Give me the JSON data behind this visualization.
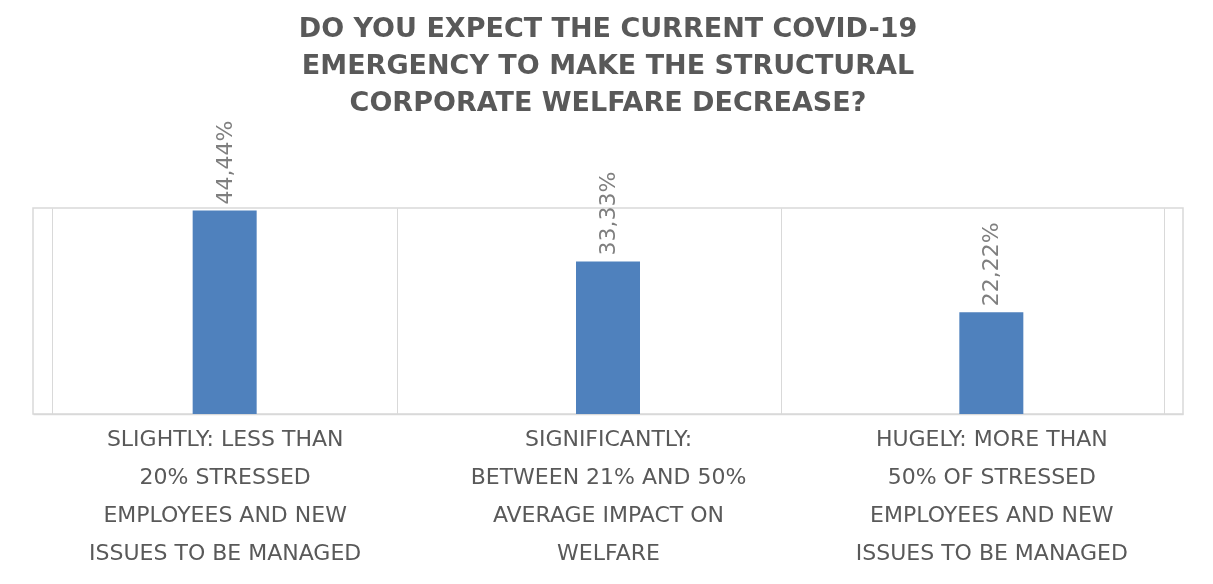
{
  "chart_data": {
    "type": "bar",
    "title": "DO YOU EXPECT THE CURRENT COVID-19 EMERGENCY TO MAKE THE STRUCTURAL CORPORATE WELFARE DECREASE?",
    "categories": [
      "SLIGHTLY: LESS THAN 20% STRESSED EMPLOYEES AND NEW ISSUES TO BE MANAGED",
      "SIGNIFICANTLY: BETWEEN 21% AND 50% AVERAGE IMPACT ON WELFARE",
      "HUGELY: MORE THAN 50% OF STRESSED EMPLOYEES AND NEW ISSUES TO BE MANAGED"
    ],
    "values": [
      44.44,
      33.33,
      22.22
    ],
    "value_labels": [
      "44,44%",
      "33,33%",
      "22,22%"
    ],
    "color": "#4f81bd",
    "grid": "x"
  }
}
